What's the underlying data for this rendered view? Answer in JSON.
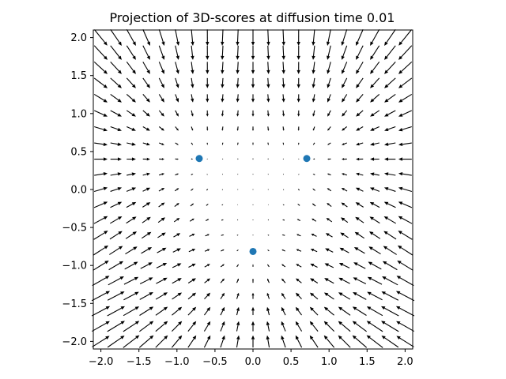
{
  "chart_data": {
    "type": "quiver",
    "title": "Projection of 3D-scores at diffusion time 0.01",
    "xlabel": "",
    "ylabel": "",
    "xlim": [
      -2.1,
      2.1
    ],
    "ylim": [
      -2.1,
      2.1
    ],
    "aspect": "equal",
    "grid": false,
    "legend": "none",
    "x_ticks": [
      -2.0,
      -1.5,
      -1.0,
      -0.5,
      0.0,
      0.5,
      1.0,
      1.5,
      2.0
    ],
    "x_tick_labels": [
      "−2.0",
      "−1.5",
      "−1.0",
      "−0.5",
      "0.0",
      "0.5",
      "1.0",
      "1.5",
      "2.0"
    ],
    "y_ticks": [
      -2.0,
      -1.5,
      -1.0,
      -0.5,
      0.0,
      0.5,
      1.0,
      1.5,
      2.0
    ],
    "y_tick_labels": [
      "−2.0",
      "−1.5",
      "−1.0",
      "−0.5",
      "0.0",
      "0.5",
      "1.0",
      "1.5",
      "2.0"
    ],
    "quiver_grid": {
      "x_range": [
        -2.0,
        2.0
      ],
      "y_range": [
        -2.0,
        2.0
      ],
      "n": 21
    },
    "points": [
      {
        "x": -0.707,
        "y": 0.408
      },
      {
        "x": 0.707,
        "y": 0.408
      },
      {
        "x": 0.0,
        "y": -0.816
      }
    ],
    "colors": {
      "arrow": "#000000",
      "points": "#1f77b4"
    }
  }
}
